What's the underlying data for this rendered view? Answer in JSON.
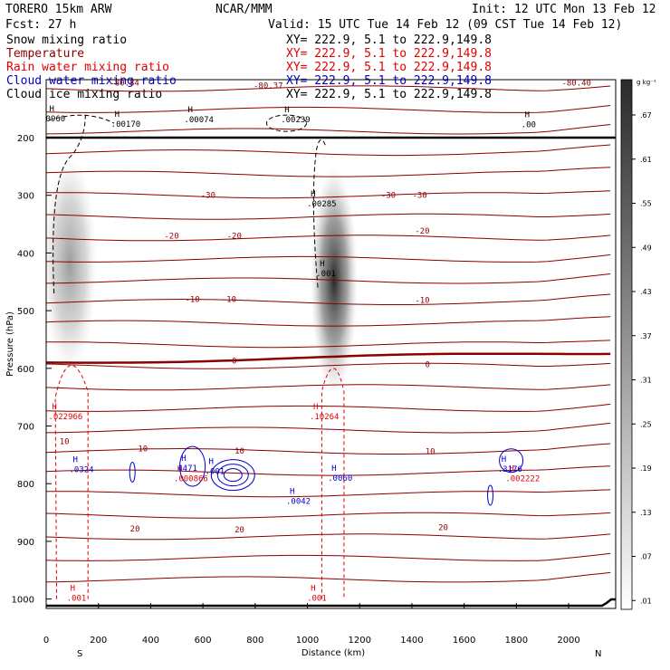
{
  "header": {
    "model": "TORERO   15km ARW",
    "center": "NCAR/MMM",
    "init": "Init: 12 UTC Mon 13 Feb 12",
    "fcst": "Fcst:    27 h",
    "valid": "Valid: 15 UTC Tue 14 Feb 12 (09 CST Tue 14 Feb 12)",
    "xy_line": "XY= 222.9,   5.1 to 222.9,149.8"
  },
  "legend": [
    {
      "label": "Snow mixing ratio",
      "color": "#000000"
    },
    {
      "label": "Temperature",
      "color": "#8b0000"
    },
    {
      "label": "Rain water mixing ratio",
      "color": "#e00000"
    },
    {
      "label": "Cloud water mixing ratio",
      "color": "#0000cc"
    },
    {
      "label": "Cloud ice mixing ratio",
      "color": "#000000"
    }
  ],
  "colors": {
    "temperature": "#8b0000",
    "rain": "#e00000",
    "cloud_water": "#0000cc",
    "black": "#000000"
  },
  "chart_data": {
    "type": "cross-section",
    "xlabel": "Distance (km)",
    "ylabel": "Pressure (hPa)",
    "xlim": [
      0,
      2180
    ],
    "ylim": [
      1000,
      100
    ],
    "x_ticks": [
      0,
      200,
      400,
      600,
      800,
      1000,
      1200,
      1400,
      1600,
      1800,
      2000
    ],
    "y_ticks": [
      200,
      300,
      400,
      500,
      600,
      700,
      800,
      900,
      1000
    ],
    "direction_labels": {
      "left": "S",
      "right": "N"
    },
    "colorbar": {
      "unit": "g kg⁻¹",
      "ticks": [
        ".01",
        ".07",
        ".13",
        ".19",
        ".25",
        ".31",
        ".37",
        ".43",
        ".49",
        ".55",
        ".61",
        ".67"
      ]
    },
    "temperature_isotherms_C": [
      -30,
      -20,
      -10,
      0,
      10,
      20
    ],
    "temperature_labels": [
      {
        "x": 300,
        "p": 105,
        "text": "-80.84"
      },
      {
        "x": 850,
        "p": 110,
        "text": "-80.37"
      },
      {
        "x": 620,
        "p": 300,
        "text": "-30"
      },
      {
        "x": 1310,
        "p": 300,
        "text": "-30"
      },
      {
        "x": 1430,
        "p": 300,
        "text": "-30"
      },
      {
        "x": 480,
        "p": 370,
        "text": "-20"
      },
      {
        "x": 720,
        "p": 370,
        "text": "-20"
      },
      {
        "x": 1440,
        "p": 362,
        "text": "-20"
      },
      {
        "x": 560,
        "p": 480,
        "text": "-10"
      },
      {
        "x": 700,
        "p": 480,
        "text": "-10"
      },
      {
        "x": 1440,
        "p": 482,
        "text": "-10"
      },
      {
        "x": 720,
        "p": 587,
        "text": "0"
      },
      {
        "x": 1460,
        "p": 593,
        "text": "0"
      },
      {
        "x": 70,
        "p": 727,
        "text": "10"
      },
      {
        "x": 370,
        "p": 739,
        "text": "10"
      },
      {
        "x": 740,
        "p": 743,
        "text": "10"
      },
      {
        "x": 1470,
        "p": 744,
        "text": "10"
      },
      {
        "x": 340,
        "p": 878,
        "text": "20"
      },
      {
        "x": 740,
        "p": 880,
        "text": "20"
      },
      {
        "x": 1520,
        "p": 876,
        "text": "20"
      },
      {
        "x": 2030,
        "p": 105,
        "text": "-80.40"
      }
    ],
    "maxima": [
      {
        "x": 290,
        "p": 181,
        "text": ".00170",
        "color": "black"
      },
      {
        "x": 570,
        "p": 173,
        "text": ".00074",
        "color": "black"
      },
      {
        "x": 940,
        "p": 173,
        "text": ".00239",
        "color": "black"
      },
      {
        "x": 1860,
        "p": 182,
        "text": ".00",
        "color": "black"
      },
      {
        "x": 1040,
        "p": 319,
        "text": ".00285",
        "color": "black"
      },
      {
        "x": 1075,
        "p": 440,
        "text": ".001",
        "color": "black"
      },
      {
        "x": 40,
        "p": 172,
        "text": "0960",
        "color": "black"
      },
      {
        "x": 1050,
        "p": 688,
        "text": ".10264",
        "color": "rain"
      },
      {
        "x": 50,
        "p": 688,
        "text": ".022966",
        "color": "rain"
      },
      {
        "x": 530,
        "p": 796,
        "text": ".000866",
        "color": "rain"
      },
      {
        "x": 1800,
        "p": 796,
        "text": ".002222",
        "color": "rain"
      },
      {
        "x": 130,
        "p": 780,
        "text": ".0324",
        "color": "cloud_water"
      },
      {
        "x": 545,
        "p": 778,
        "text": "4471",
        "color": "cloud_water"
      },
      {
        "x": 650,
        "p": 783,
        "text": ".001",
        "color": "cloud_water"
      },
      {
        "x": 1120,
        "p": 795,
        "text": ".0060",
        "color": "cloud_water"
      },
      {
        "x": 960,
        "p": 835,
        "text": ".0042",
        "color": "cloud_water"
      },
      {
        "x": 1770,
        "p": 779,
        "text": ".3176",
        "color": "cloud_water"
      },
      {
        "x": 120,
        "p": 1003,
        "text": ".001",
        "color": "rain"
      },
      {
        "x": 1040,
        "p": 1003,
        "text": ".001",
        "color": "rain"
      }
    ]
  }
}
